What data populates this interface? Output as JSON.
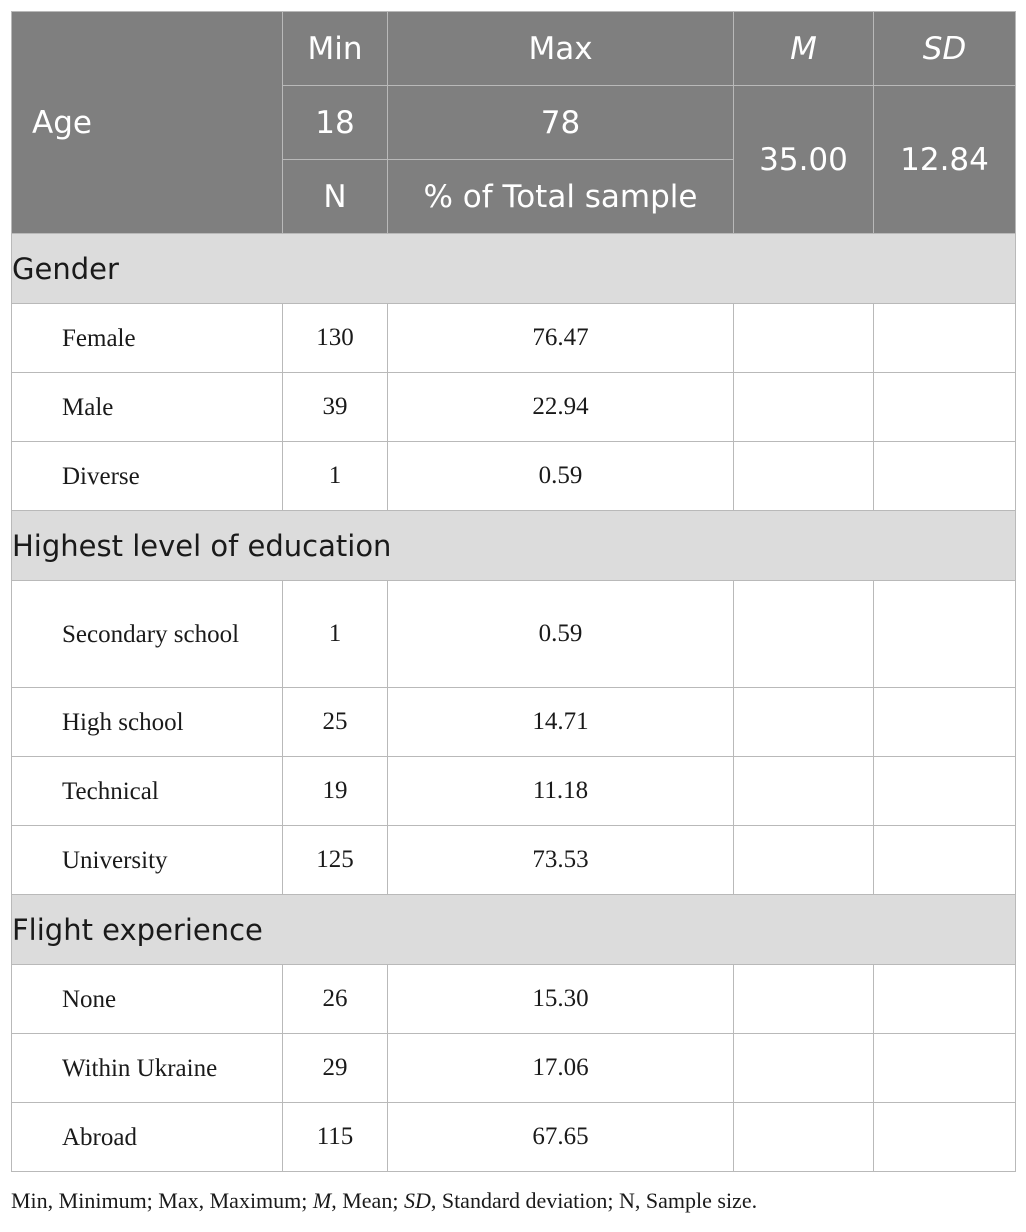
{
  "header": {
    "age": "Age",
    "min": "Min",
    "max": "Max",
    "mean": "M",
    "sd": "SD",
    "min_value": "18",
    "max_value": "78",
    "mean_value": "35.00",
    "sd_value": "12.84",
    "n": "N",
    "pct": "% of Total sample"
  },
  "sections": [
    {
      "title": "Gender",
      "rows": [
        {
          "label": "Female",
          "n": "130",
          "pct": "76.47"
        },
        {
          "label": "Male",
          "n": "39",
          "pct": "22.94"
        },
        {
          "label": "Diverse",
          "n": "1",
          "pct": "0.59"
        }
      ]
    },
    {
      "title": "Highest level of education",
      "rows": [
        {
          "label": "Secondary school",
          "n": "1",
          "pct": "0.59"
        },
        {
          "label": "High school",
          "n": "25",
          "pct": "14.71"
        },
        {
          "label": "Technical",
          "n": "19",
          "pct": "11.18"
        },
        {
          "label": "University",
          "n": "125",
          "pct": "73.53"
        }
      ]
    },
    {
      "title": "Flight experience",
      "rows": [
        {
          "label": "None",
          "n": "26",
          "pct": "15.30"
        },
        {
          "label": "Within Ukraine",
          "n": "29",
          "pct": "17.06"
        },
        {
          "label": "Abroad",
          "n": "115",
          "pct": "67.65"
        }
      ]
    }
  ],
  "footnote": {
    "t1": "Min, Minimum; Max, Maximum; ",
    "m": "M",
    "t2": ", Mean; ",
    "sd": "SD",
    "t3": ", Standard deviation; N, Sample size."
  }
}
